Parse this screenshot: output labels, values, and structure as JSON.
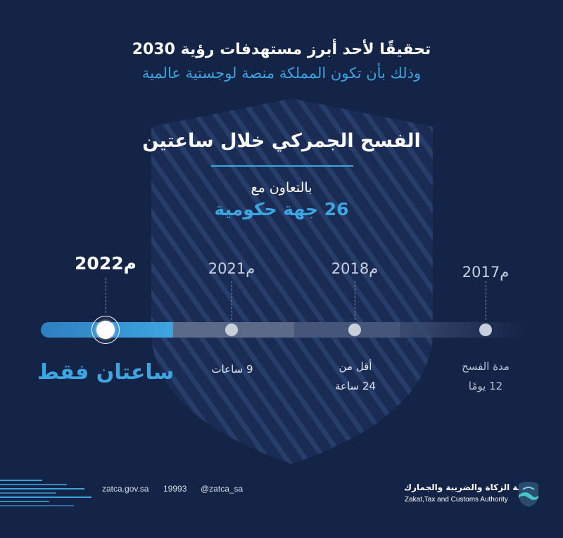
{
  "header": {
    "line1": "تحقيقًا لأحد أبرز مستهدفات رؤية 2030",
    "line2": "وذلك بأن تكون المملكة منصة لوجستية عالمية"
  },
  "headline": "الفسح الجمركي خلال ساعتين",
  "cooperation": {
    "label": "بالتعاون مع",
    "value": "26 جهة حكومية"
  },
  "timeline": {
    "years": [
      "2017م",
      "2018م",
      "2021م",
      "2022م"
    ],
    "captions": {
      "y2017_line1": "مدة الفسح",
      "y2017_line2": "12 يومًا",
      "y2018_line1": "أقل من",
      "y2018_line2": "24 ساعة",
      "y2021": "9 ساعات",
      "y2022": "ساعتان فقط"
    },
    "active_year": "2022م"
  },
  "footer": {
    "website": "zatca.gov.sa",
    "phone": "19993",
    "handle": "@zatca_sa"
  },
  "logo": {
    "arabic_name": "هيئة الزكاة والضريبة والجمارك",
    "english_name": "Zakat,Tax and Customs Authority",
    "icon": "zatca-logo-icon"
  },
  "colors": {
    "background": "#142447",
    "accent": "#3da5e0"
  }
}
